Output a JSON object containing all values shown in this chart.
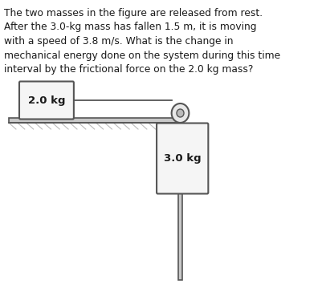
{
  "text_lines": [
    "The two masses in the figure are released from rest.",
    "After the 3.0-kg mass has fallen 1.5 m, it is moving",
    "with a speed of 3.8 m/s. What is the change in",
    "mechanical energy done on the system during this time",
    "interval by the frictional force on the 2.0 kg mass?"
  ],
  "bg_color": "#ffffff",
  "text_color": "#1a1a1a",
  "text_fontsize": 8.8,
  "box_color": "#f5f5f5",
  "box_edge_color": "#555555",
  "mass1_label": "2.0 kg",
  "mass2_label": "3.0 kg",
  "label_fontsize": 9.5,
  "rope_color": "#555555",
  "table_color": "#c8c8c8",
  "table_edge_color": "#555555",
  "pulley_outer_color": "#e8e8e8",
  "pulley_inner_color": "#bbbbbb",
  "ground_texture_color": "#bbbbbb"
}
